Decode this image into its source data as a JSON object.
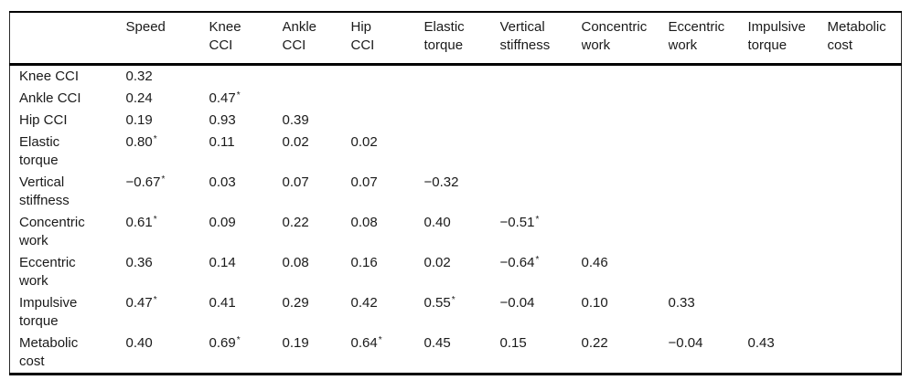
{
  "chart_data": {
    "type": "table",
    "description": "Lower-triangular correlation matrix; asterisk marks significant correlations",
    "columns": [
      "",
      "Speed",
      "Knee\nCCI",
      "Ankle\nCCI",
      "Hip\nCCI",
      "Elastic\ntorque",
      "Vertical\nstiffness",
      "Concentric\nwork",
      "Eccentric\nwork",
      "Impulsive\ntorque",
      "Metabolic\ncost"
    ],
    "rows": [
      {
        "label": "Knee CCI",
        "values": [
          "0.32"
        ]
      },
      {
        "label": "Ankle CCI",
        "values": [
          "0.24",
          "0.47*"
        ]
      },
      {
        "label": "Hip CCI",
        "values": [
          "0.19",
          "0.93",
          "0.39"
        ]
      },
      {
        "label": "Elastic\ntorque",
        "values": [
          "0.80*",
          "0.11",
          "0.02",
          "0.02"
        ]
      },
      {
        "label": "Vertical\nstiffness",
        "values": [
          "−0.67*",
          "0.03",
          "0.07",
          "0.07",
          "−0.32"
        ]
      },
      {
        "label": "Concentric\nwork",
        "values": [
          "0.61*",
          "0.09",
          "0.22",
          "0.08",
          "0.40",
          "−0.51*"
        ]
      },
      {
        "label": "Eccentric\nwork",
        "values": [
          "0.36",
          "0.14",
          "0.08",
          "0.16",
          "0.02",
          "−0.64*",
          "0.46"
        ]
      },
      {
        "label": "Impulsive\ntorque",
        "values": [
          "0.47*",
          "0.41",
          "0.29",
          "0.42",
          "0.55*",
          "−0.04",
          "0.10",
          "0.33"
        ]
      },
      {
        "label": "Metabolic\ncost",
        "values": [
          "0.40",
          "0.69*",
          "0.19",
          "0.64*",
          "0.45",
          "0.15",
          "0.22",
          "−0.04",
          "0.43"
        ]
      }
    ],
    "colors": {
      "text": "#1a1a1a",
      "rule": "#000000",
      "background": "#ffffff"
    }
  }
}
